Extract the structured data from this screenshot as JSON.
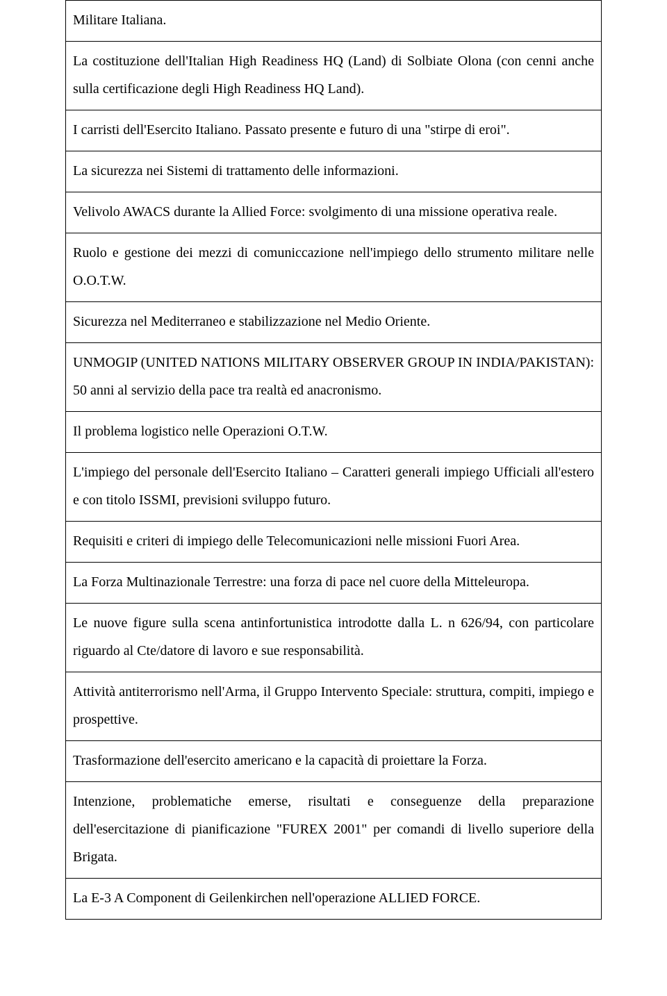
{
  "text_color": "#000000",
  "background_color": "#ffffff",
  "border_color": "#000000",
  "font_family": "Times New Roman",
  "font_size_pt": 15,
  "line_height": 2.0,
  "text_align": "justify",
  "rows": [
    "Militare Italiana.",
    "La costituzione dell'Italian High Readiness HQ (Land) di Solbiate Olona (con cenni anche sulla certificazione degli High Readiness HQ Land).",
    "I carristi dell'Esercito Italiano. Passato presente e futuro di una \"stirpe di eroi\".",
    "La sicurezza nei Sistemi di trattamento delle informazioni.",
    "Velivolo AWACS durante la Allied Force: svolgimento di una missione operativa reale.",
    "Ruolo e gestione dei mezzi di comuniccazione nell'impiego dello strumento militare nelle O.O.T.W.",
    "Sicurezza nel Mediterraneo e stabilizzazione nel Medio Oriente.",
    "UNMOGIP (UNITED NATIONS MILITARY OBSERVER GROUP IN INDIA/PAKISTAN): 50 anni al servizio della pace tra realtà ed anacronismo.",
    "Il problema logistico nelle Operazioni O.T.W.",
    "L'impiego del personale dell'Esercito Italiano – Caratteri generali impiego Ufficiali all'estero e con titolo ISSMI, previsioni sviluppo futuro.",
    "Requisiti e criteri di impiego delle Telecomunicazioni nelle missioni Fuori Area.",
    "La Forza Multinazionale Terrestre: una forza di pace nel cuore della Mitteleuropa.",
    "Le nuove figure sulla scena antinfortunistica introdotte dalla L. n 626/94, con particolare riguardo al Cte/datore di lavoro e sue responsabilità.",
    "Attività antiterrorismo nell'Arma, il Gruppo Intervento Speciale: struttura, compiti, impiego e prospettive.",
    "Trasformazione dell'esercito americano e la capacità di proiettare la Forza.",
    "Intenzione, problematiche emerse, risultati e conseguenze della preparazione dell'esercitazione di pianificazione \"FUREX 2001\" per comandi di livello superiore della Brigata.",
    "La E-3 A Component di Geilenkirchen nell'operazione ALLIED FORCE."
  ]
}
